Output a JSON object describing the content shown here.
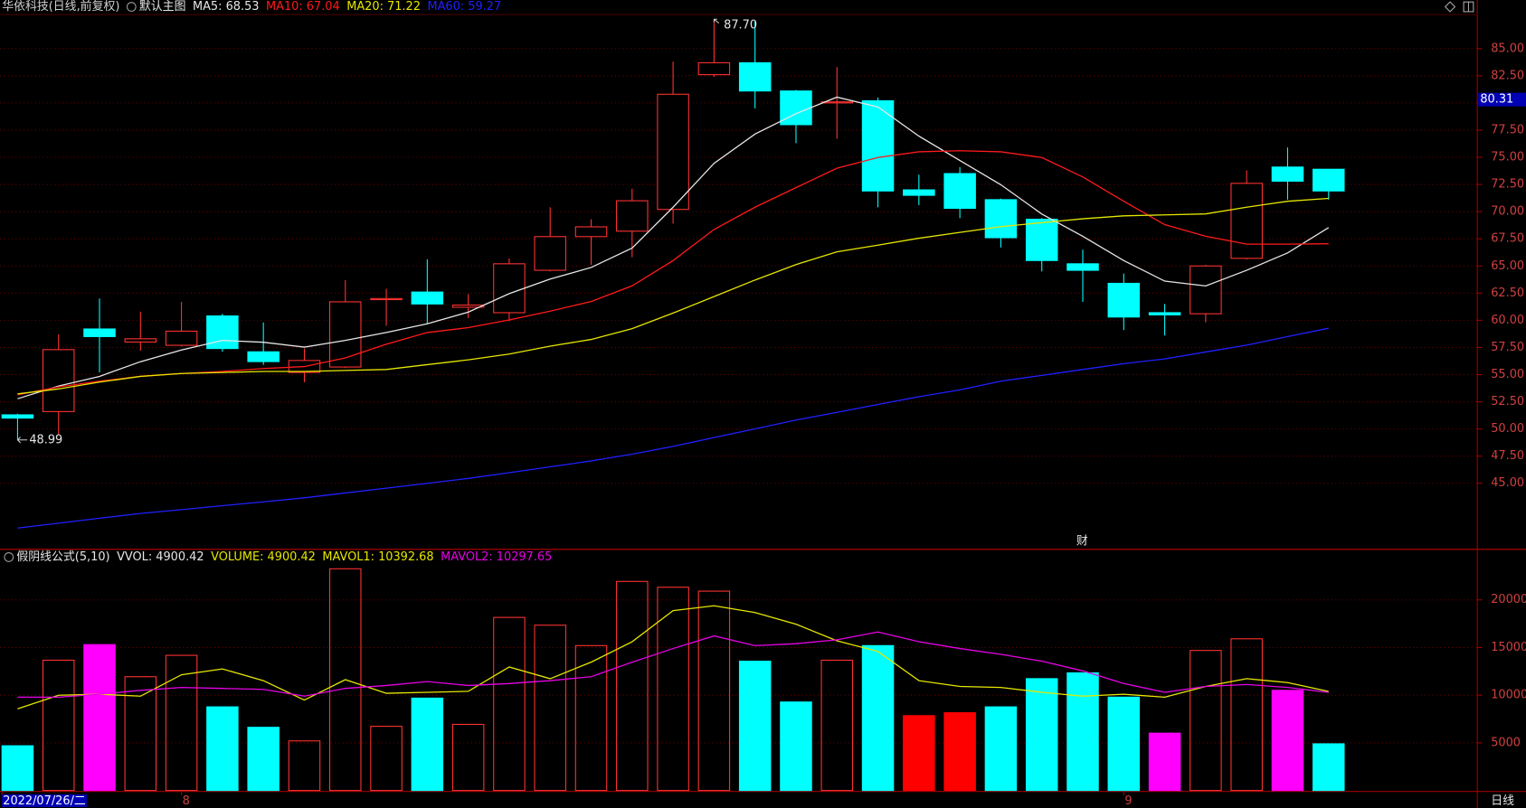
{
  "chart_data": [
    {
      "type": "candlestick",
      "title": "华依科技(日线,前复权)",
      "subtitle": "默认主图",
      "open": [
        51.3,
        51.6,
        59.2,
        58.0,
        57.7,
        60.4,
        57.1,
        55.2,
        55.7,
        61.9,
        62.6,
        61.2,
        60.7,
        64.6,
        67.7,
        68.2,
        70.2,
        82.6,
        83.7,
        81.1,
        80.0,
        80.2,
        72.0,
        73.5,
        71.1,
        69.3,
        65.2,
        63.4,
        60.7,
        60.6,
        65.7,
        74.1,
        73.9
      ],
      "high": [
        51.4,
        58.7,
        62.0,
        60.8,
        61.7,
        60.6,
        59.8,
        57.4,
        63.7,
        62.9,
        65.6,
        62.4,
        65.7,
        70.4,
        69.3,
        72.1,
        83.8,
        87.7,
        87.5,
        81.2,
        83.3,
        80.5,
        73.4,
        74.1,
        71.2,
        69.4,
        66.5,
        64.3,
        61.5,
        65.1,
        73.8,
        75.9,
        73.9
      ],
      "low": [
        48.99,
        49.5,
        55.2,
        57.2,
        57.6,
        57.1,
        55.9,
        54.3,
        55.6,
        59.5,
        59.7,
        60.2,
        59.9,
        64.5,
        65.1,
        65.8,
        68.9,
        82.4,
        79.5,
        76.3,
        76.7,
        70.4,
        70.6,
        69.4,
        66.7,
        64.5,
        61.7,
        59.1,
        58.6,
        59.8,
        65.6,
        71.1,
        71.1
      ],
      "close": [
        51.0,
        57.3,
        58.5,
        58.3,
        59.0,
        57.4,
        56.2,
        56.3,
        61.7,
        62.0,
        61.5,
        61.4,
        65.2,
        67.7,
        68.6,
        71.0,
        80.8,
        83.7,
        81.1,
        78.0,
        80.1,
        71.9,
        71.5,
        70.3,
        67.6,
        65.5,
        64.6,
        60.3,
        60.5,
        65.0,
        72.6,
        72.8,
        71.9
      ],
      "up_color": "#ff3232",
      "down_color": "#00ffff",
      "series": [
        {
          "label": "MA5: 68.53",
          "color": "#e6e6e6",
          "values": [
            52.78,
            53.95,
            54.84,
            56.19,
            57.26,
            58.15,
            57.98,
            57.53,
            58.15,
            58.87,
            59.68,
            60.75,
            62.45,
            63.79,
            64.86,
            66.65,
            70.41,
            74.44,
            77.13,
            79.01,
            80.53,
            79.63,
            76.95,
            74.71,
            72.47,
            69.78,
            67.73,
            65.49,
            63.61,
            63.16,
            64.6,
            66.2,
            68.53
          ]
        },
        {
          "label": "MA10: 67.04",
          "color": "#ff1a1a",
          "values": [
            53.14,
            53.86,
            54.4,
            54.84,
            55.11,
            55.29,
            55.56,
            55.74,
            56.54,
            57.8,
            58.87,
            59.32,
            60.03,
            60.84,
            61.73,
            63.17,
            65.49,
            68.36,
            70.41,
            72.2,
            73.99,
            74.98,
            75.51,
            75.6,
            75.51,
            74.98,
            73.19,
            70.95,
            68.8,
            67.73,
            67.01,
            67.01,
            67.04
          ]
        },
        {
          "label": "MA20: 71.22",
          "color": "#e6e600",
          "values": [
            53.23,
            53.68,
            54.31,
            54.84,
            55.11,
            55.2,
            55.29,
            55.29,
            55.38,
            55.47,
            55.92,
            56.36,
            56.9,
            57.62,
            58.24,
            59.23,
            60.66,
            62.18,
            63.7,
            65.13,
            66.3,
            66.92,
            67.55,
            68.09,
            68.62,
            68.98,
            69.34,
            69.61,
            69.7,
            69.79,
            70.41,
            70.95,
            71.22
          ]
        },
        {
          "label": "MA60: 59.27",
          "color": "#2020ff",
          "values": [
            40.88,
            41.33,
            41.78,
            42.22,
            42.58,
            42.94,
            43.3,
            43.66,
            44.11,
            44.55,
            45.0,
            45.45,
            45.98,
            46.52,
            47.06,
            47.68,
            48.4,
            49.21,
            50.01,
            50.82,
            51.53,
            52.25,
            52.97,
            53.59,
            54.4,
            54.93,
            55.47,
            56.01,
            56.45,
            57.08,
            57.71,
            58.51,
            59.27
          ]
        }
      ],
      "ylim": [
        39.1,
        88.13
      ],
      "yticks": [
        {
          "value": 45,
          "label": "45.00"
        },
        {
          "value": 47.5,
          "label": "47.50"
        },
        {
          "value": 50,
          "label": "50.00"
        },
        {
          "value": 52.5,
          "label": "52.50"
        },
        {
          "value": 55,
          "label": "55.00"
        },
        {
          "value": 57.5,
          "label": "57.50"
        },
        {
          "value": 60,
          "label": "60.00"
        },
        {
          "value": 62.5,
          "label": "62.50"
        },
        {
          "value": 65,
          "label": "65.00"
        },
        {
          "value": 67.5,
          "label": "67.50"
        },
        {
          "value": 70,
          "label": "70.00"
        },
        {
          "value": 72.5,
          "label": "72.50"
        },
        {
          "value": 75,
          "label": "75.00"
        },
        {
          "value": 77.5,
          "label": "77.50"
        },
        {
          "value": 80,
          "label": "80.00"
        },
        {
          "value": 82.5,
          "label": "82.50"
        },
        {
          "value": 85,
          "label": "85.00"
        }
      ],
      "grid": true,
      "high_label": "87.70",
      "low_label": "48.99",
      "price_marker": 80.31,
      "price_marker_color": "#0000b4",
      "event_marker": "财"
    },
    {
      "type": "bar",
      "title": "假阴线公式(5,10)",
      "header_labels": [
        {
          "text": "VVOL: 4900.42",
          "color": "#e6e6e6"
        },
        {
          "text": "VOLUME: 4900.42",
          "color": "#e6e600"
        }
      ],
      "values": [
        4694,
        13673,
        15306,
        11939,
        14184,
        8776,
        6633,
        5204,
        23265,
        6735,
        9694,
        6939,
        18163,
        17347,
        15204,
        21939,
        21327,
        20918,
        13571,
        9286,
        13673,
        15204,
        7857,
        8163,
        8776,
        11735,
        12347,
        9796,
        6020,
        14694,
        15918,
        10510,
        4900.42
      ],
      "colors": [
        "#00ffff",
        "#ff3232",
        "#ff00ff",
        "#ff3232",
        "#ff3232",
        "#00ffff",
        "#00ffff",
        "#ff3232",
        "#ff3232",
        "#ff3232",
        "#00ffff",
        "#ff3232",
        "#ff3232",
        "#ff3232",
        "#ff3232",
        "#ff3232",
        "#ff3232",
        "#ff3232",
        "#00ffff",
        "#00ffff",
        "#ff3232",
        "#00ffff",
        "#ff0000",
        "#ff0000",
        "#00ffff",
        "#00ffff",
        "#00ffff",
        "#00ffff",
        "#ff00ff",
        "#ff3232",
        "#ff3232",
        "#ff00ff",
        "#00ffff"
      ],
      "hollow": [
        false,
        true,
        false,
        true,
        true,
        false,
        false,
        true,
        true,
        true,
        false,
        true,
        true,
        true,
        true,
        true,
        true,
        true,
        false,
        false,
        true,
        false,
        false,
        false,
        false,
        false,
        false,
        false,
        false,
        true,
        true,
        false,
        false
      ],
      "series": [
        {
          "label": "MAVOL1: 10392.68",
          "color": "#e6e600",
          "values": [
            8571,
            10000,
            10102,
            9898,
            12143,
            12755,
            11531,
            9490,
            11633,
            10204,
            10306,
            10408,
            12959,
            11735,
            13469,
            15612,
            18878,
            19388,
            18673,
            17449,
            15714,
            14592,
            11531,
            10918,
            10816,
            10306,
            9898,
            10102,
            9796,
            10918,
            11735,
            11327,
            10392.68
          ]
        },
        {
          "label": "MAVOL2: 10297.65",
          "color": "#e600e6",
          "values": [
            9796,
            9796,
            10102,
            10510,
            10816,
            10714,
            10612,
            9898,
            10714,
            11020,
            11429,
            11020,
            11224,
            11531,
            11939,
            13469,
            14898,
            16224,
            15204,
            15408,
            15816,
            16633,
            15612,
            14898,
            14286,
            13571,
            12551,
            11224,
            10306,
            10918,
            11122,
            10816,
            10297.65
          ]
        }
      ],
      "ylim": [
        0,
        25200
      ],
      "yticks": [
        5000,
        10000,
        15000,
        20000
      ],
      "grid": true,
      "categories": [
        "2022/07/26/二",
        null,
        null,
        null,
        "8",
        null,
        null,
        null,
        null,
        null,
        null,
        null,
        null,
        null,
        null,
        null,
        null,
        null,
        null,
        null,
        null,
        null,
        null,
        null,
        null,
        null,
        null,
        "9",
        null,
        null,
        null,
        null,
        null
      ],
      "period_label": "日线"
    }
  ]
}
